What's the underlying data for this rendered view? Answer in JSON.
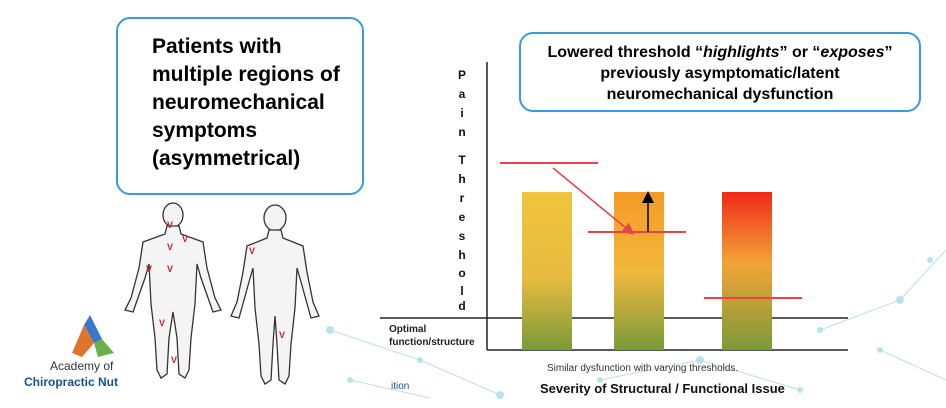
{
  "callout_left": {
    "text": "Patients with\nmultiple regions of\nneuromechanical\nsymptoms\n(asymmetrical)"
  },
  "callout_right": {
    "line1_a": "Lowered threshold “",
    "line1_b": "highlights",
    "line1_c": "” or “",
    "line1_d": "exposes",
    "line1_e": "”",
    "line2": "previously asymptomatic/latent",
    "line3": "neuromechanical dysfunction"
  },
  "y_axis_letters": [
    "P",
    "a",
    "i",
    "n",
    "T",
    "h",
    "r",
    "e",
    "s",
    "h",
    "o",
    "l",
    "d"
  ],
  "optimal_label": [
    "Optimal",
    "function/structure"
  ],
  "x_caption": "Similar dysfunction with varying thresholds.",
  "x_title": "Severity of Structural / Functional Issue",
  "body_marker": "V",
  "logo": {
    "line1": "Academy of",
    "line2": "Chiropractic Nut",
    "fragment": "ition"
  },
  "colors": {
    "callout_border": "#3a9bdc",
    "threshold_line": "#e8424a",
    "bar_bottom": "#7a9a3a"
  }
}
